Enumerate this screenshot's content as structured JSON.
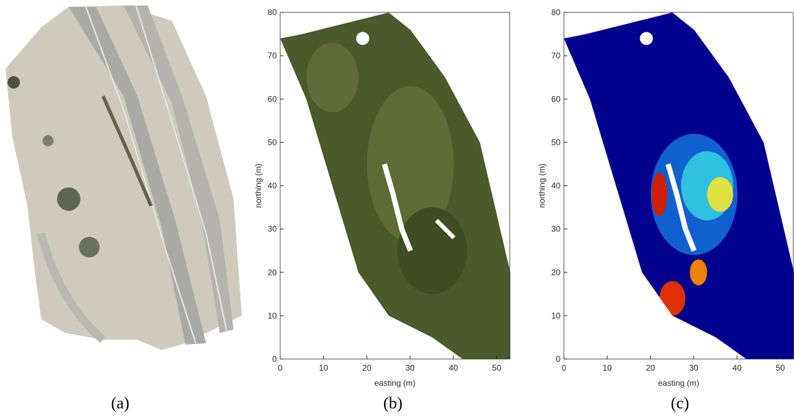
{
  "chart_data": [
    {
      "type": "photo",
      "caption": "(a)"
    },
    {
      "type": "map",
      "caption": "(b)",
      "xlabel": "easting (m)",
      "ylabel": "northing (m)",
      "xlim": [
        0,
        53
      ],
      "ylim": [
        0,
        80
      ],
      "xticks": [
        0,
        10,
        20,
        30,
        40,
        50
      ],
      "yticks": [
        0,
        10,
        20,
        30,
        40,
        50,
        60,
        70,
        80
      ]
    },
    {
      "type": "map",
      "caption": "(c)",
      "xlabel": "easting (m)",
      "ylabel": "northing (m)",
      "xlim": [
        0,
        53
      ],
      "ylim": [
        0,
        80
      ],
      "xticks": [
        0,
        10,
        20,
        30,
        40,
        50
      ],
      "yticks": [
        0,
        10,
        20,
        30,
        40,
        50,
        60,
        70,
        80
      ]
    }
  ]
}
